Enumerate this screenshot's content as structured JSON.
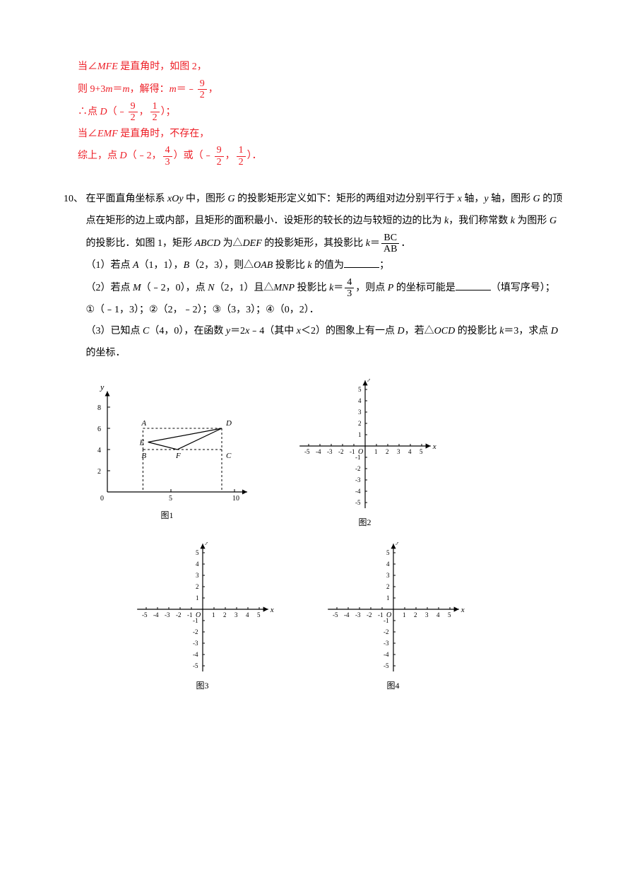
{
  "solution": {
    "line1_a": "当∠",
    "line1_b": "MFE",
    "line1_c": " 是直角时，如图 2，",
    "line2_a": "则 9+3",
    "line2_b": "m",
    "line2_c": "＝",
    "line2_d": "m",
    "line2_e": "，解得：",
    "line2_f": "m",
    "line2_g": "＝﹣",
    "frac1_num": "9",
    "frac1_den": "2",
    "line2_h": "，",
    "line3_a": "∴点 ",
    "line3_b": "D",
    "line3_c": "（﹣",
    "frac2_num": "9",
    "frac2_den": "2",
    "line3_d": "，",
    "frac3_num": "1",
    "frac3_den": "2",
    "line3_e": "）；",
    "line4_a": "当∠",
    "line4_b": "EMF",
    "line4_c": " 是直角时，不存在，",
    "line5_a": "综上，点 ",
    "line5_b": "D",
    "line5_c": "（﹣2，",
    "frac4_num": "4",
    "frac4_den": "3",
    "line5_d": "）或（﹣",
    "frac5_num": "9",
    "frac5_den": "2",
    "line5_e": "，",
    "frac6_num": "1",
    "frac6_den": "2",
    "line5_f": "）．"
  },
  "q10": {
    "num": "10、",
    "p1_a": "在平面直角坐标系 ",
    "p1_b": "xOy",
    "p1_c": " 中，图形 ",
    "p1_d": "G",
    "p1_e": " 的投影矩形定义如下：矩形的两组对边分别平行于 ",
    "p1_f": "x",
    "p1_g": " 轴，",
    "p1_h": "y",
    "p1_i": " 轴，图形 ",
    "p1_j": "G",
    "p1_k": " 的顶点在矩形的边上或内部，且矩形的面积最小．设矩形的较长的边与较短的边的比为 ",
    "p1_l": "k",
    "p1_m": "，我们称常数 ",
    "p1_n": "k",
    "p1_o": " 为图形 ",
    "p1_p": "G",
    "p1_q": " 的投影比．如图 1，矩形 ",
    "p1_r": "ABCD",
    "p1_s": " 为△",
    "p1_t": "DEF",
    "p1_u": " 的投影矩形，其投影比 ",
    "p1_v": "k",
    "p1_w": "＝",
    "frac_bc": "BC",
    "frac_ab": "AB",
    "p1_x": "．",
    "sub1_a": "（1）若点 ",
    "sub1_b": "A",
    "sub1_c": "（1，1），",
    "sub1_d": "B",
    "sub1_e": "（2，3），则△",
    "sub1_f": "OAB",
    "sub1_g": " 投影比 ",
    "sub1_h": "k",
    "sub1_i": " 的值为",
    "sub1_j": "；",
    "sub2_a": "（2）若点 ",
    "sub2_b": "M",
    "sub2_c": "（﹣2，0），点 ",
    "sub2_d": "N",
    "sub2_e": "（2，1）且△",
    "sub2_f": "MNP",
    "sub2_g": " 投影比 ",
    "sub2_h": "k",
    "sub2_i": "＝",
    "frac7_num": "4",
    "frac7_den": "3",
    "sub2_j": "，则点 ",
    "sub2_k": "P",
    "sub2_l": " 的坐标可能是",
    "sub2_m": "（填写序号）；",
    "opts": "①（﹣1，3）；②（2，﹣2）；③（3，3）；④（0，2）．",
    "sub3_a": "（3）已知点 ",
    "sub3_b": "C",
    "sub3_c": "（4，0），在函数 ",
    "sub3_d": "y",
    "sub3_e": "＝2",
    "sub3_f": "x",
    "sub3_g": "﹣4（其中 ",
    "sub3_h": "x",
    "sub3_i": "＜2）的图象上有一点 ",
    "sub3_j": "D",
    "sub3_k": "，若△",
    "sub3_l": "OCD",
    "sub3_m": " 的投影比 ",
    "sub3_n": "k",
    "sub3_o": "＝3，求点 ",
    "sub3_p": "D",
    "sub3_q": " 的坐标．",
    "fig1_label": "图1",
    "fig2_label": "图2",
    "fig3_label": "图3",
    "fig4_label": "图4"
  },
  "fig1": {
    "x_ticks": [
      0,
      5,
      10
    ],
    "y_ticks": [
      2,
      4,
      6,
      8
    ],
    "points": {
      "A": {
        "x": 2.8,
        "y": 6,
        "label": "A"
      },
      "B": {
        "x": 2.8,
        "y": 4,
        "label": "B"
      },
      "C": {
        "x": 9,
        "y": 4,
        "label": "C"
      },
      "D": {
        "x": 9,
        "y": 6,
        "label": "D"
      },
      "E": {
        "x": 3.2,
        "y": 4.7,
        "label": "E"
      },
      "F": {
        "x": 5.5,
        "y": 4,
        "label": "F"
      }
    },
    "xlabel": "x",
    "ylabel": "y"
  },
  "smallgrid": {
    "x_ticks": [
      -5,
      -4,
      -3,
      -2,
      -1,
      1,
      2,
      3,
      4,
      5
    ],
    "y_ticks_pos": [
      1,
      2,
      3,
      4,
      5
    ],
    "y_ticks_neg": [
      -1,
      -2,
      -3,
      -4,
      -5
    ],
    "xlabel": "x",
    "ylabel": "y",
    "origin": "O"
  }
}
